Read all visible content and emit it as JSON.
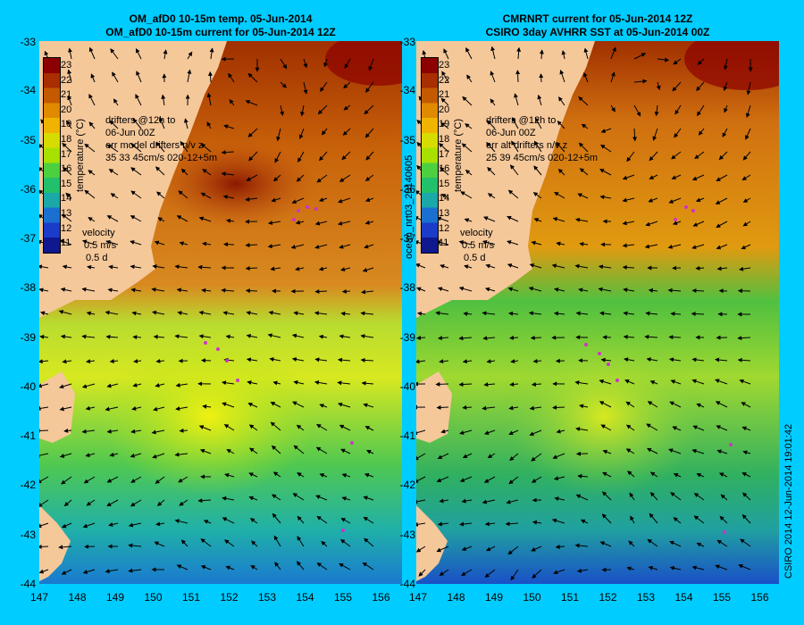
{
  "titles": {
    "left": [
      "OM_afD0 10-15m temp. 05-Jun-2014",
      "OM_afD0 10-15m current for 05-Jun-2014 12Z"
    ],
    "right": [
      "CMRNRT current for 05-Jun-2014 12Z",
      "CSIRO 3day AVHRR SST at 05-Jun-2014 00Z"
    ]
  },
  "axes": {
    "lat_ticks": [
      "-33",
      "-34",
      "-35",
      "-36",
      "-37",
      "-38",
      "-39",
      "-40",
      "-41",
      "-42",
      "-43",
      "-44"
    ],
    "lon_ticks": [
      "147",
      "148",
      "149",
      "150",
      "151",
      "152",
      "153",
      "154",
      "155",
      "156"
    ]
  },
  "colorbar": {
    "labels": [
      "23",
      "22",
      "21",
      "20",
      "19",
      "18",
      "17",
      "16",
      "15",
      "14",
      "13",
      "12",
      "11"
    ],
    "title": "temperature (°C)",
    "colors": [
      "#8b0000",
      "#a82d00",
      "#c45a00",
      "#e08a00",
      "#f0b400",
      "#d7dc00",
      "#a8e000",
      "#4cd040",
      "#22c06a",
      "#1aa8a8",
      "#1a70d0",
      "#1a3cc8",
      "#101890"
    ]
  },
  "left_overlay": {
    "line1": "drifters @12h to",
    "line2": "06-Jun 00Z",
    "line3": "err model drifters n/v z",
    "line4": "35   33    45cm/s 020-12+5m",
    "velocity": "velocity",
    "vel_ms": "0.5 m/s",
    "vel_d": "0.5 d"
  },
  "right_overlay": {
    "line1": "drifters @12h to",
    "line2": "06-Jun 00Z",
    "line3": "err alt drifters n/v z",
    "line4": "25 39 45cm/s 020-12+5m",
    "velocity": "velocity",
    "vel_ms": "0.5 m/s",
    "vel_d": "0.5 d"
  },
  "side_label_left": "ocean_nrt03_20140605",
  "side_label_right": "CSIRO 2014   12-Jun-2014 19:01:42",
  "colors": {
    "background": "#00ccff",
    "land": "#f5c89a",
    "arrow": "#000000",
    "drifter": "#cc33cc"
  }
}
